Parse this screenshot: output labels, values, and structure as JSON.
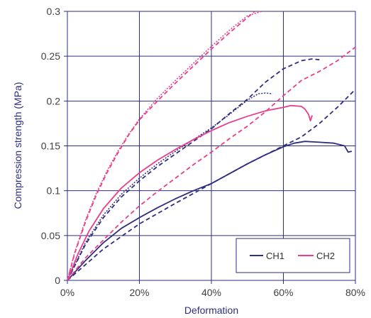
{
  "chart_data": {
    "type": "line",
    "title": "",
    "xlabel": "Deformation",
    "ylabel": "Compression strength (MPa)",
    "xlim": [
      0,
      80
    ],
    "ylim": [
      0,
      0.3
    ],
    "x_ticks": [
      0,
      20,
      40,
      60,
      80
    ],
    "x_tick_labels": [
      "0%",
      "20%",
      "40%",
      "60%",
      "80%"
    ],
    "y_ticks": [
      0,
      0.05,
      0.1,
      0.15,
      0.2,
      0.25,
      0.3
    ],
    "y_tick_labels": [
      "0",
      "0.05",
      "0.1",
      "0.15",
      "0.2",
      "0.25",
      "0.3"
    ],
    "grid": true,
    "legend_position": "bottom-right",
    "legend": [
      {
        "label": "CH1",
        "color": "#2e2e80"
      },
      {
        "label": "CH2",
        "color": "#e83e8c"
      }
    ],
    "series": [
      {
        "group": "CH1",
        "style": "solid",
        "color": "#2e2e80",
        "x": [
          0,
          5,
          10,
          15,
          20,
          25,
          30,
          35,
          40,
          45,
          50,
          55,
          60,
          63,
          66,
          70,
          74,
          77,
          78,
          79
        ],
        "y": [
          0,
          0.022,
          0.042,
          0.058,
          0.07,
          0.081,
          0.091,
          0.1,
          0.108,
          0.119,
          0.13,
          0.14,
          0.149,
          0.153,
          0.155,
          0.154,
          0.153,
          0.15,
          0.143,
          0.144
        ]
      },
      {
        "group": "CH1",
        "style": "dashed",
        "color": "#2e2e80",
        "x": [
          0,
          10,
          20,
          30,
          40,
          50,
          60,
          65,
          70,
          75,
          80
        ],
        "y": [
          0,
          0.035,
          0.063,
          0.086,
          0.108,
          0.13,
          0.15,
          0.16,
          0.175,
          0.193,
          0.213
        ]
      },
      {
        "group": "CH1",
        "style": "dashed-upper",
        "color": "#2e2e80",
        "x": [
          0,
          5,
          10,
          15,
          20,
          25,
          30,
          35,
          40,
          45,
          50,
          55,
          60,
          65,
          68,
          70
        ],
        "y": [
          0,
          0.04,
          0.07,
          0.093,
          0.111,
          0.127,
          0.141,
          0.155,
          0.169,
          0.186,
          0.202,
          0.221,
          0.236,
          0.245,
          0.247,
          0.246
        ]
      },
      {
        "group": "CH1",
        "style": "dotted",
        "color": "#2e2e80",
        "x": [
          0,
          5,
          10,
          15,
          20,
          25,
          30,
          35,
          40,
          45,
          50,
          53,
          55,
          57
        ],
        "y": [
          0,
          0.042,
          0.073,
          0.096,
          0.114,
          0.13,
          0.144,
          0.157,
          0.17,
          0.185,
          0.201,
          0.208,
          0.209,
          0.208
        ]
      },
      {
        "group": "CH2",
        "style": "solid",
        "color": "#e83e8c",
        "x": [
          0,
          3,
          6,
          10,
          15,
          20,
          25,
          30,
          35,
          40,
          45,
          50,
          55,
          60,
          62,
          65,
          66,
          67,
          67.5,
          68
        ],
        "y": [
          0,
          0.03,
          0.055,
          0.08,
          0.103,
          0.12,
          0.134,
          0.146,
          0.157,
          0.167,
          0.176,
          0.183,
          0.189,
          0.193,
          0.195,
          0.194,
          0.191,
          0.185,
          0.178,
          0.184
        ]
      },
      {
        "group": "CH2",
        "style": "dashed",
        "color": "#e83e8c",
        "x": [
          0,
          5,
          10,
          15,
          20,
          25,
          30,
          35,
          40,
          45,
          50,
          55,
          60,
          65,
          70,
          75,
          80
        ],
        "y": [
          0,
          0.025,
          0.045,
          0.065,
          0.083,
          0.099,
          0.114,
          0.129,
          0.143,
          0.158,
          0.172,
          0.188,
          0.206,
          0.223,
          0.233,
          0.245,
          0.26
        ]
      },
      {
        "group": "CH2",
        "style": "dashed-steep",
        "color": "#e83e8c",
        "x": [
          0,
          2,
          5,
          8,
          11,
          14,
          17,
          20,
          25,
          30,
          35,
          40,
          45,
          50,
          52
        ],
        "y": [
          0,
          0.03,
          0.065,
          0.095,
          0.12,
          0.142,
          0.162,
          0.179,
          0.2,
          0.22,
          0.239,
          0.258,
          0.276,
          0.293,
          0.3
        ]
      },
      {
        "group": "CH2",
        "style": "dotted",
        "color": "#e83e8c",
        "x": [
          0,
          2,
          5,
          8,
          11,
          14,
          17,
          20,
          25,
          30,
          35,
          40,
          45,
          50,
          54
        ],
        "y": [
          0,
          0.031,
          0.067,
          0.097,
          0.122,
          0.144,
          0.163,
          0.18,
          0.203,
          0.223,
          0.242,
          0.261,
          0.279,
          0.295,
          0.3
        ]
      }
    ]
  }
}
